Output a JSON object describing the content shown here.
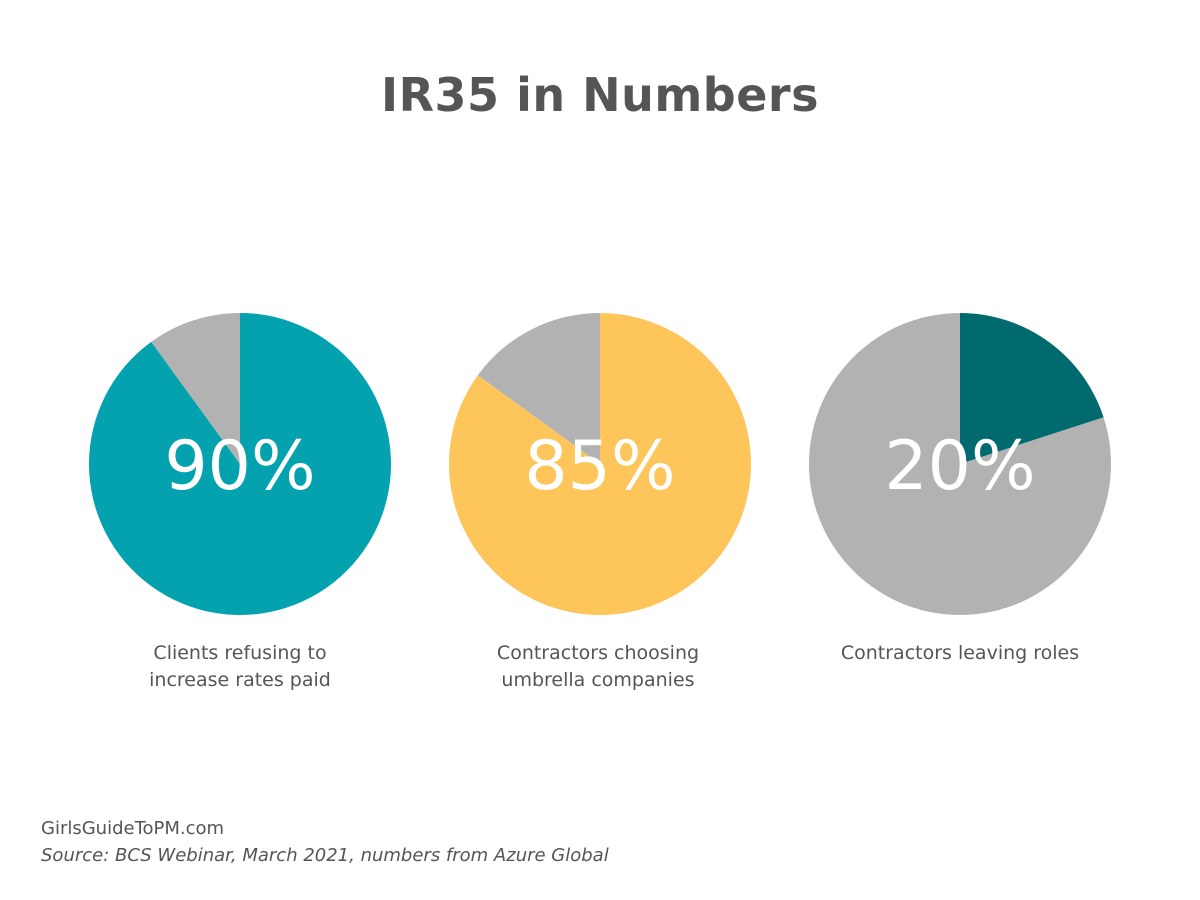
{
  "title": "IR35 in Numbers",
  "chart_data": [
    {
      "type": "pie",
      "slices": [
        {
          "label": "Clients refusing to increase rates paid",
          "value": 90,
          "color": "#03a2ae"
        },
        {
          "label": "Remainder",
          "value": 10,
          "color": "#b2b2b2"
        }
      ],
      "center_text": "90%",
      "caption_lines": [
        "Clients refusing to",
        "increase rates paid"
      ]
    },
    {
      "type": "pie",
      "slices": [
        {
          "label": "Contractors choosing umbrella companies",
          "value": 85,
          "color": "#fec55a"
        },
        {
          "label": "Remainder",
          "value": 15,
          "color": "#b2b2b2"
        }
      ],
      "center_text": "85%",
      "caption_lines": [
        "Contractors choosing",
        "umbrella companies"
      ]
    },
    {
      "type": "pie",
      "slices": [
        {
          "label": "Contractors leaving roles",
          "value": 20,
          "color": "#006a6e"
        },
        {
          "label": "Remainder",
          "value": 80,
          "color": "#b2b2b2"
        }
      ],
      "center_text": "20%",
      "caption_lines": [
        "Contractors leaving roles"
      ]
    }
  ],
  "footer": {
    "site": "GirlsGuideToPM.com",
    "source": "Source: BCS Webinar, March 2021, numbers from Azure Global"
  }
}
